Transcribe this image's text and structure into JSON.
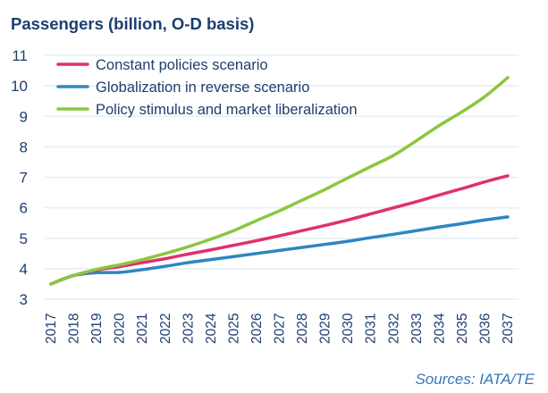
{
  "chart_data": {
    "type": "line",
    "title": "Passengers (billion, O-D basis)",
    "xlabel": "",
    "ylabel": "",
    "ylim": [
      3,
      11
    ],
    "yticks": [
      3,
      4,
      5,
      6,
      7,
      8,
      9,
      10,
      11
    ],
    "grid": true,
    "legend_position": "top-left",
    "x": [
      "2017",
      "2018",
      "2019",
      "2020",
      "2021",
      "2022",
      "2023",
      "2024",
      "2025",
      "2026",
      "2027",
      "2028",
      "2029",
      "2030",
      "2031",
      "2032",
      "2033",
      "2034",
      "2035",
      "2036",
      "2037"
    ],
    "series": [
      {
        "name": "Constant policies scenario",
        "color": "#e0306f",
        "values": [
          3.5,
          3.78,
          3.96,
          4.07,
          4.2,
          4.33,
          4.48,
          4.62,
          4.77,
          4.92,
          5.08,
          5.25,
          5.42,
          5.6,
          5.8,
          6.0,
          6.2,
          6.42,
          6.63,
          6.85,
          7.05
        ]
      },
      {
        "name": "Globalization in reverse scenario",
        "color": "#2e86c1",
        "values": [
          3.5,
          3.78,
          3.87,
          3.88,
          3.97,
          4.08,
          4.2,
          4.3,
          4.4,
          4.5,
          4.6,
          4.7,
          4.8,
          4.9,
          5.02,
          5.13,
          5.25,
          5.37,
          5.48,
          5.6,
          5.7
        ]
      },
      {
        "name": "Policy stimulus and market liberalization",
        "color": "#8cc63f",
        "values": [
          3.5,
          3.78,
          3.98,
          4.13,
          4.3,
          4.5,
          4.72,
          4.97,
          5.25,
          5.58,
          5.9,
          6.25,
          6.6,
          6.98,
          7.35,
          7.72,
          8.2,
          8.7,
          9.15,
          9.65,
          10.27
        ]
      }
    ],
    "annotations": [
      "Sources: IATA/TE"
    ]
  },
  "source_note": "Sources: IATA/TE"
}
